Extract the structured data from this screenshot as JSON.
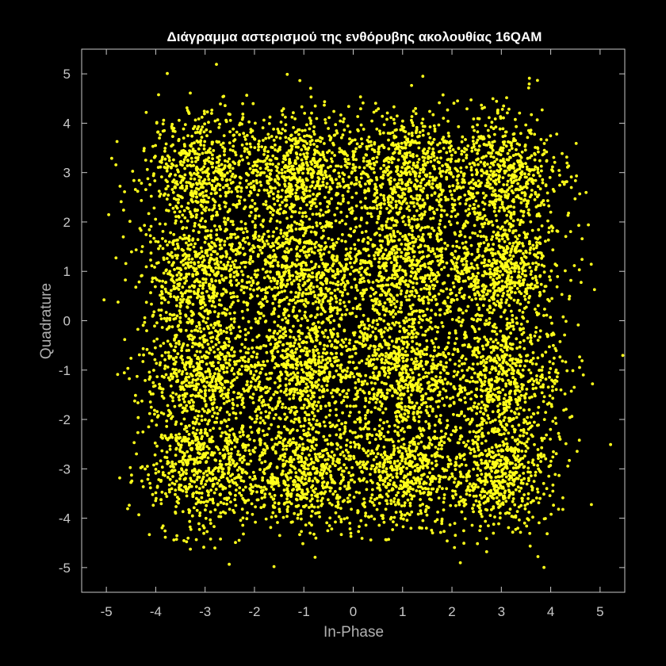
{
  "chart_data": {
    "type": "scatter",
    "title": "Διάγραμμα αστερισμού της ενθόρυβης ακολουθίας 16QAM",
    "xlabel": "In-Phase",
    "ylabel": "Quadrature",
    "xlim": [
      -5.5,
      5.5
    ],
    "ylim": [
      -5.5,
      5.5
    ],
    "xticks": [
      -5,
      -4,
      -3,
      -2,
      -1,
      0,
      1,
      2,
      3,
      4,
      5
    ],
    "yticks": [
      5,
      4,
      3,
      2,
      1,
      0,
      -1,
      -2,
      -3,
      -4,
      -5
    ],
    "grid": false,
    "colors": {
      "background": "#000000",
      "points": "#ffff1a",
      "axis": "#c8c8c8"
    },
    "constellation": {
      "in_phase_levels": [
        -3,
        -1,
        1,
        3
      ],
      "quadrature_levels": [
        -3,
        -1,
        1,
        3
      ],
      "points_per_symbol": 640,
      "noise_std": 0.62
    }
  }
}
